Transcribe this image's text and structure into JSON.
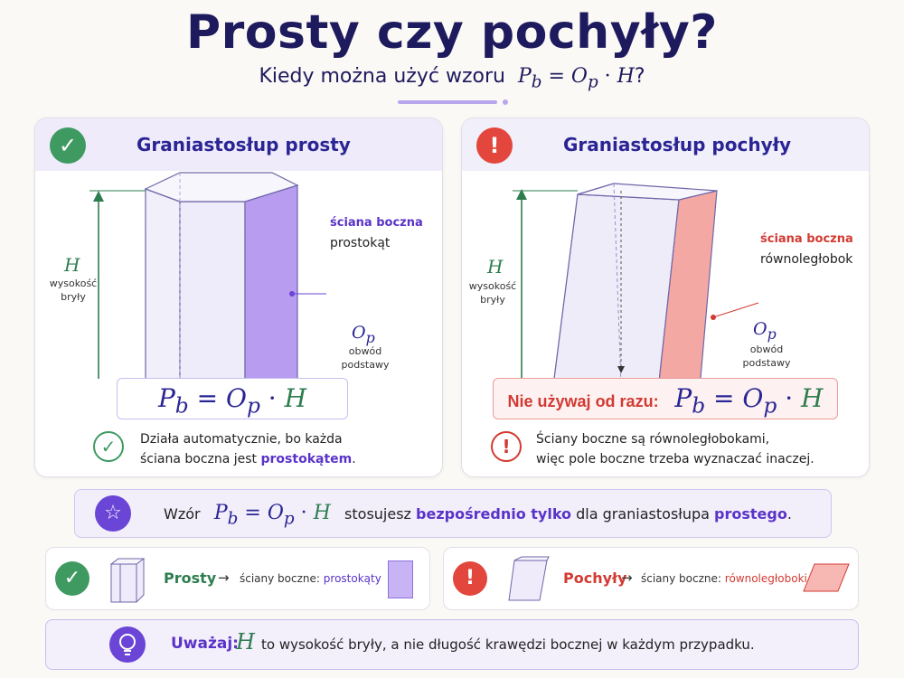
{
  "title": "Prosty czy pochyły?",
  "subtitle": {
    "text": "Kiedy można użyć wzoru",
    "formula": "Pb = Op · H",
    "end": "?"
  },
  "formula": {
    "P": "P",
    "b": "b",
    "eq": " = ",
    "O": "O",
    "p": "p",
    "dot": " · ",
    "H": "H"
  },
  "left_panel": {
    "title": "Graniastosłup prosty",
    "status_icon": "check-icon",
    "H_label": "H",
    "height_label_1": "wysokość",
    "height_label_2": "bryły",
    "face_label": "ściana boczna",
    "face_type": "prostokąt",
    "base_symbol": "Op",
    "base_label_1": "obwód",
    "base_label_2": "podstawy",
    "note_line_1": "Działa automatycznie, bo każda",
    "note_line_2_start": "ściana boczna jest ",
    "note_line_2_bold": "prostokątem",
    "note_line_2_end": "."
  },
  "right_panel": {
    "title": "Graniastosłup pochyły",
    "status_icon": "exclamation-icon",
    "H_label": "H",
    "height_label_1": "wysokość",
    "height_label_2": "bryły",
    "face_label": "ściana boczna",
    "face_type": "równoległobok",
    "base_symbol": "Op",
    "base_label_1": "obwód",
    "base_label_2": "podstawy",
    "formula_prefix": "Nie używaj od razu:",
    "note_line_1": "Ściany boczne są równoległobokami,",
    "note_line_2": "więc pole boczne trzeba wyznaczać inaczej."
  },
  "rule": {
    "icon": "star-icon",
    "word_start": "Wzór",
    "mid": "stosujesz",
    "bold": "bezpośrednio tylko",
    "after": "dla graniastosłupa",
    "bold_end": "prostego",
    "end": "."
  },
  "summary_left": {
    "icon": "check-icon",
    "name": "Prosty",
    "arrow": "→",
    "label": "ściany boczne:",
    "value": "prostokąty"
  },
  "summary_right": {
    "icon": "exclamation-icon",
    "name": "Pochyły",
    "arrow": "→",
    "label": "ściany boczne:",
    "value": "równoległoboki"
  },
  "warning": {
    "icon": "lightbulb-icon",
    "label": "Uważaj:",
    "H": "H",
    "text": "to wysokość bryły, a nie długość krawędzi bocznej w każdym przypadku."
  },
  "colors": {
    "navy": "#1e1a5e",
    "purple": "#5a33c8",
    "green": "#2e7d4f",
    "red": "#d23a32",
    "lavender": "#efebfb"
  }
}
